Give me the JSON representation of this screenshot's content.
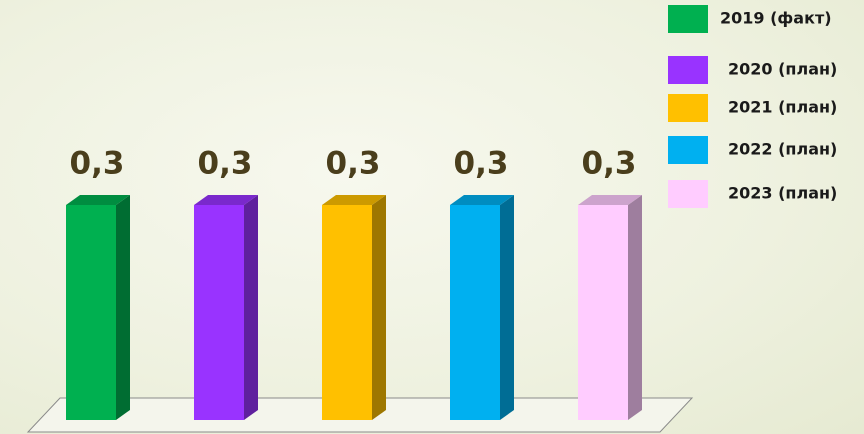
{
  "chart_data": {
    "type": "bar",
    "categories": [
      null
    ],
    "series": [
      {
        "name": "2019 (факт)",
        "color": "#00b050",
        "values": [
          0.3
        ],
        "value_labels": [
          "0,3"
        ]
      },
      {
        "name": "2020 (план)",
        "color": "#9933ff",
        "values": [
          0.3
        ],
        "value_labels": [
          "0,3"
        ]
      },
      {
        "name": "2021 (план)",
        "color": "#ffc000",
        "values": [
          0.3
        ],
        "value_labels": [
          "0,3"
        ]
      },
      {
        "name": "2022 (план)",
        "color": "#00b0f0",
        "values": [
          0.3
        ],
        "value_labels": [
          "0,3"
        ]
      },
      {
        "name": "2023 (план)",
        "color": "#ffccff",
        "values": [
          0.3
        ],
        "value_labels": [
          "0,3"
        ]
      }
    ]
  }
}
